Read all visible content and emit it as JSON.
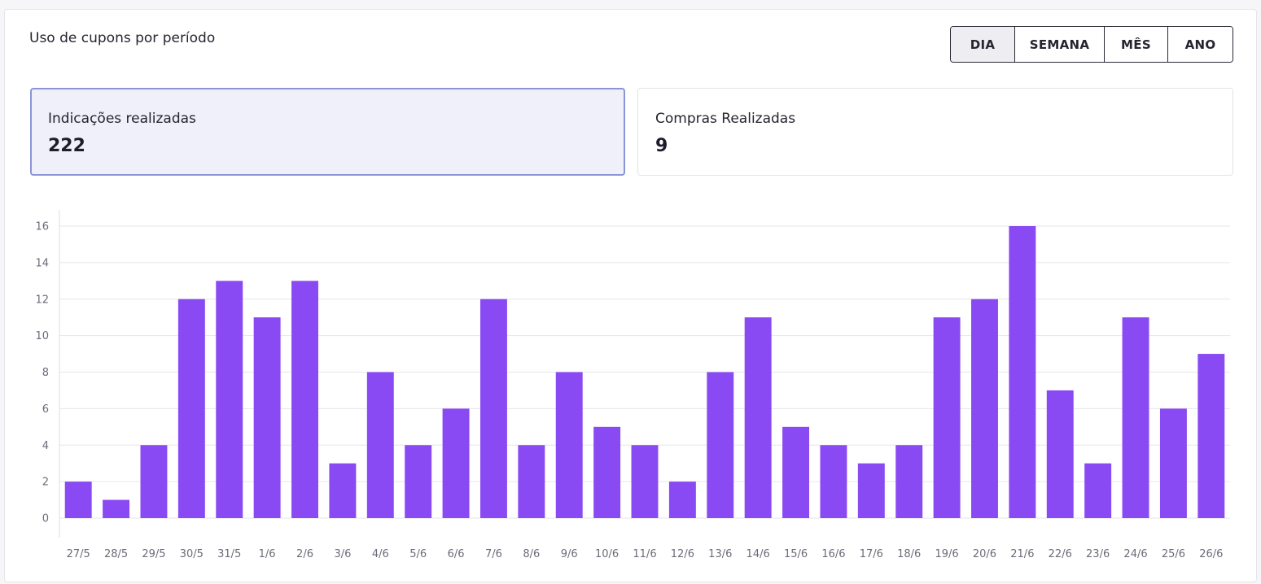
{
  "title": "Uso de cupons por período",
  "period_buttons": [
    {
      "label": "DIA",
      "active": true
    },
    {
      "label": "SEMANA",
      "active": false
    },
    {
      "label": "MÊS",
      "active": false
    },
    {
      "label": "ANO",
      "active": false
    }
  ],
  "stats": [
    {
      "label": "Indicações realizadas",
      "value": "222",
      "selected": true
    },
    {
      "label": "Compras Realizadas",
      "value": "9",
      "selected": false
    }
  ],
  "colors": {
    "bar": "#8a4af3",
    "selected_border": "#8b95d6"
  },
  "chart_data": {
    "type": "bar",
    "categories": [
      "27/5",
      "28/5",
      "29/5",
      "30/5",
      "31/5",
      "1/6",
      "2/6",
      "3/6",
      "4/6",
      "5/6",
      "6/6",
      "7/6",
      "8/6",
      "9/6",
      "10/6",
      "11/6",
      "12/6",
      "13/6",
      "14/6",
      "15/6",
      "16/6",
      "17/6",
      "18/6",
      "19/6",
      "20/6",
      "21/6",
      "22/6",
      "23/6",
      "24/6",
      "25/6",
      "26/6"
    ],
    "values": [
      2,
      1,
      4,
      12,
      13,
      11,
      13,
      3,
      8,
      4,
      6,
      12,
      4,
      8,
      5,
      4,
      2,
      8,
      11,
      5,
      4,
      3,
      4,
      11,
      12,
      16,
      7,
      3,
      11,
      6,
      9
    ],
    "title": "",
    "xlabel": "",
    "ylabel": "",
    "ylim": [
      0,
      16
    ],
    "yticks": [
      0,
      2,
      4,
      6,
      8,
      10,
      12,
      14,
      16
    ],
    "grid": true,
    "legend": "none"
  }
}
